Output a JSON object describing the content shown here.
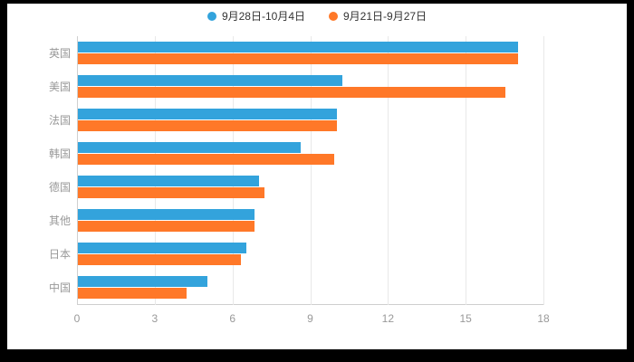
{
  "legend": {
    "items": [
      {
        "label": "9月28日-10月4日",
        "color": "#33A3DC"
      },
      {
        "label": "9月21日-9月27日",
        "color": "#FF7828"
      }
    ]
  },
  "colors": {
    "series1": "#33A3DC",
    "series2": "#FF7828",
    "axis_text": "#999999",
    "gridline": "#e8e8e8",
    "background_outer": "#000000",
    "background_panel": "#ffffff"
  },
  "chart_data": {
    "type": "bar",
    "orientation": "horizontal",
    "title": "",
    "xlabel": "",
    "ylabel": "",
    "categories": [
      "英国",
      "美国",
      "法国",
      "韩国",
      "德国",
      "其他",
      "日本",
      "中国"
    ],
    "series": [
      {
        "name": "9月28日-10月4日",
        "color": "#33A3DC",
        "values": [
          17,
          10.2,
          10,
          8.6,
          7,
          6.8,
          6.5,
          5
        ]
      },
      {
        "name": "9月21日-9月27日",
        "color": "#FF7828",
        "values": [
          17,
          16.5,
          10,
          9.9,
          7.2,
          6.8,
          6.3,
          4.2
        ]
      }
    ],
    "x_ticks": [
      0,
      3,
      6,
      9,
      12,
      15,
      18
    ],
    "xlim": [
      0,
      18
    ],
    "grid": true,
    "legend_position": "top"
  }
}
